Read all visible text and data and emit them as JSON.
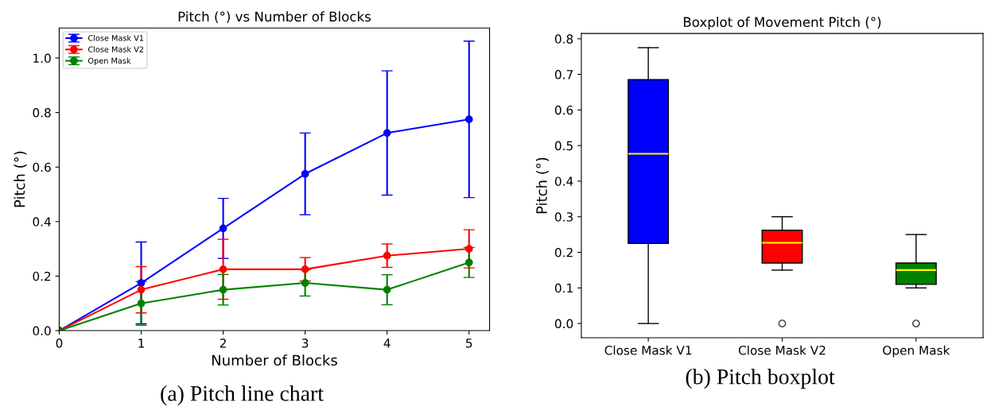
{
  "chart_data": [
    {
      "type": "line",
      "title": "Pitch (°) vs Number of Blocks",
      "xlabel": "Number of Blocks",
      "ylabel": "Pitch (°)",
      "x": [
        0,
        1,
        2,
        3,
        4,
        5
      ],
      "series": [
        {
          "name": "Close Mask V1",
          "color": "#0000ff",
          "values": [
            0,
            0.175,
            0.375,
            0.575,
            0.725,
            0.775
          ],
          "errors": [
            null,
            0.15,
            0.11,
            0.15,
            0.228,
            0.287
          ]
        },
        {
          "name": "Close Mask V2",
          "color": "#ff0000",
          "values": [
            0,
            0.15,
            0.225,
            0.225,
            0.275,
            0.3
          ],
          "errors": [
            null,
            0.085,
            0.11,
            0.043,
            0.043,
            0.07
          ]
        },
        {
          "name": "Open Mask",
          "color": "#008000",
          "values": [
            0,
            0.1,
            0.15,
            0.175,
            0.15,
            0.25
          ],
          "errors": [
            null,
            0.08,
            0.056,
            0.048,
            0.055,
            0.055
          ]
        }
      ],
      "xlim": [
        0,
        5.25
      ],
      "ylim": [
        0,
        1.11
      ],
      "xticks": [
        0,
        1,
        2,
        3,
        4,
        5
      ],
      "yticks": [
        {
          "value": 0,
          "label": "0.0"
        },
        {
          "value": 0.2,
          "label": "0.2"
        },
        {
          "value": 0.4,
          "label": "0.4"
        },
        {
          "value": 0.6,
          "label": "0.6"
        },
        {
          "value": 0.8,
          "label": "0.8"
        },
        {
          "value": 1.0,
          "label": "1.0"
        }
      ],
      "marker": "circle",
      "legend": "top left",
      "grid": false,
      "annotations": [
        "(a) Pitch line chart"
      ]
    },
    {
      "type": "box",
      "title": "Boxplot of Movement Pitch (°)",
      "ylabel": "Pitch (°)",
      "categories": [
        "Close Mask V1",
        "Close Mask V2",
        "Open Mask"
      ],
      "colors": [
        "#0000ff",
        "#ff0000",
        "#008000"
      ],
      "boxes": [
        {
          "low": 0,
          "q1": 0.225,
          "median": 0.477,
          "q3": 0.685,
          "high": 0.775
        },
        {
          "low": 0.15,
          "q1": 0.17,
          "median": 0.227,
          "q3": 0.262,
          "high": 0.3,
          "outliers": [
            0
          ]
        },
        {
          "low": 0.1,
          "q1": 0.11,
          "median": 0.15,
          "q3": 0.17,
          "high": 0.25,
          "outliers": [
            0
          ]
        }
      ],
      "ylim": [
        -0.04,
        0.815
      ],
      "yticks": [
        {
          "value": 0,
          "label": "0.0"
        },
        {
          "value": 0.1,
          "label": "0.1"
        },
        {
          "value": 0.2,
          "label": "0.2"
        },
        {
          "value": 0.3,
          "label": "0.3"
        },
        {
          "value": 0.4,
          "label": "0.4"
        },
        {
          "value": 0.5,
          "label": "0.5"
        },
        {
          "value": 0.6,
          "label": "0.6"
        },
        {
          "value": 0.7,
          "label": "0.7"
        },
        {
          "value": 0.8,
          "label": "0.8"
        }
      ],
      "grid": false,
      "annotations": [
        "(b) Pitch boxplot"
      ]
    }
  ]
}
